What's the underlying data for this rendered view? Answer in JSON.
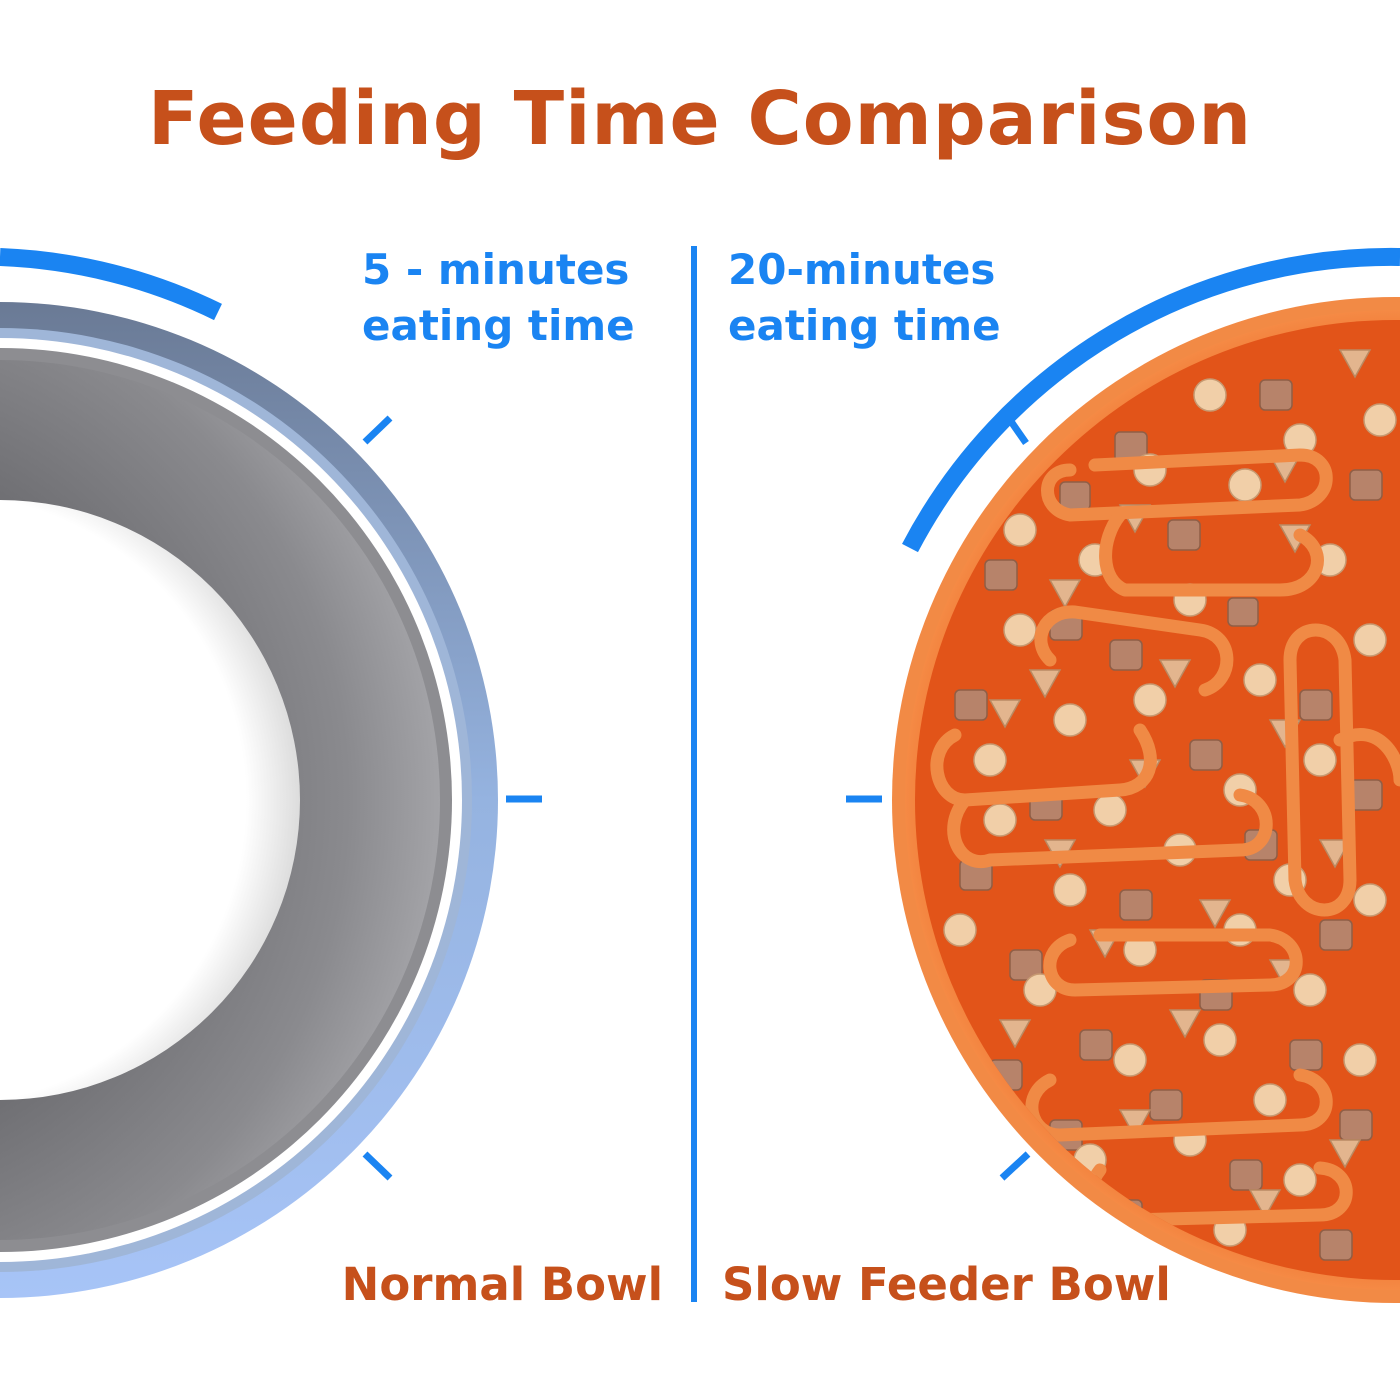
{
  "title": "Feeding Time Comparison",
  "normal": {
    "time_line1": "5 - minutes",
    "time_line2": "eating time",
    "label": "Normal Bowl"
  },
  "slow": {
    "time_line1": "20-minutes",
    "time_line2": "eating time",
    "label": "Slow Feeder Bowl"
  },
  "colors": {
    "title": "#c6501b",
    "accent_blue": "#1a84f2",
    "bowl_label": "#c6501b",
    "steel_bowl": "#7f7f83",
    "slow_bowl": "#ee6a26"
  },
  "icons": {
    "normal_bowl": "stainless-steel-bowl",
    "slow_bowl": "orange-maze-slow-feeder-with-kibble"
  }
}
